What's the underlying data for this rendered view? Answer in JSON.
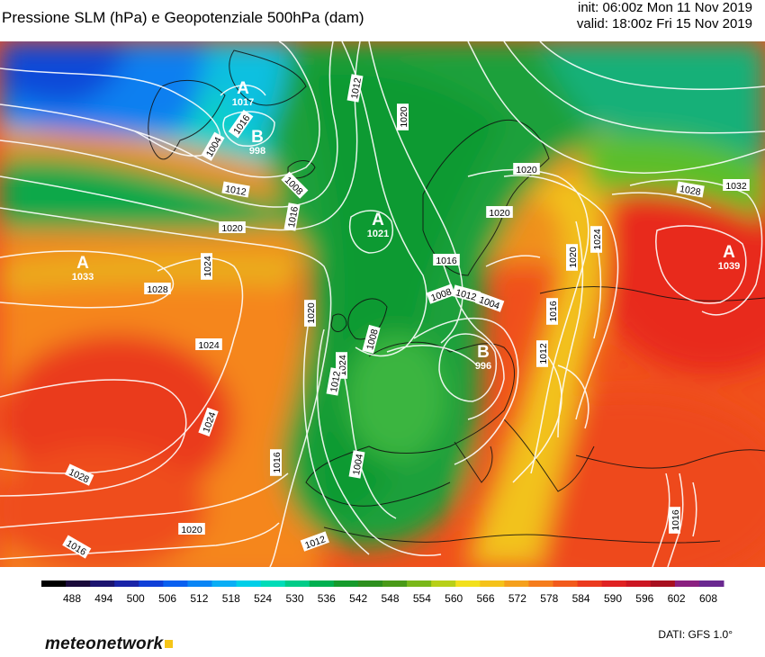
{
  "header": {
    "title": "Pressione SLM (hPa) e Geopotenziale 500hPa (dam)",
    "init": "init: 06:00z Mon 11 Nov 2019",
    "valid": "valid: 18:00z Fri 15 Nov 2019"
  },
  "colorbar": {
    "labels": [
      "488",
      "494",
      "500",
      "506",
      "512",
      "518",
      "524",
      "530",
      "536",
      "542",
      "548",
      "554",
      "560",
      "566",
      "572",
      "578",
      "584",
      "590",
      "596",
      "602",
      "608"
    ],
    "colors": [
      "#000000",
      "#1a0a3a",
      "#1c1470",
      "#1a24a8",
      "#1040d8",
      "#0a60f0",
      "#0a85f5",
      "#0aaef5",
      "#00cfe8",
      "#00dcb8",
      "#00cc88",
      "#00b050",
      "#169b2c",
      "#2e8f1e",
      "#4a9a18",
      "#7ab81a",
      "#b8d018",
      "#f2e01c",
      "#f5c21a",
      "#f5a01c",
      "#f57c1c",
      "#f25a1c",
      "#eb3a1e",
      "#e02222",
      "#cc1622",
      "#a81020",
      "#8a2080",
      "#6a2890"
    ]
  },
  "pressure_centres": [
    {
      "letter": "A",
      "value": "1017"
    },
    {
      "letter": "B",
      "value": "998"
    },
    {
      "letter": "A",
      "value": "1021"
    },
    {
      "letter": "A",
      "value": "1033"
    },
    {
      "letter": "B",
      "value": "996"
    },
    {
      "letter": "A",
      "value": "1039"
    }
  ],
  "isobar_labels": [
    "1004",
    "1008",
    "1012",
    "1012",
    "1016",
    "1016",
    "1020",
    "1020",
    "1020",
    "1024",
    "1024",
    "1024",
    "1024",
    "1028",
    "1028",
    "1028",
    "1032",
    "1020",
    "1016",
    "1012",
    "1008",
    "1004",
    "1012",
    "1016",
    "1020",
    "1024",
    "1020",
    "1016",
    "1004",
    "1012",
    "1016",
    "1012",
    "1008",
    "1016",
    "1020"
  ],
  "footer": {
    "logo": "meteonetwork",
    "source": "DATI:  GFS  1.0°"
  }
}
